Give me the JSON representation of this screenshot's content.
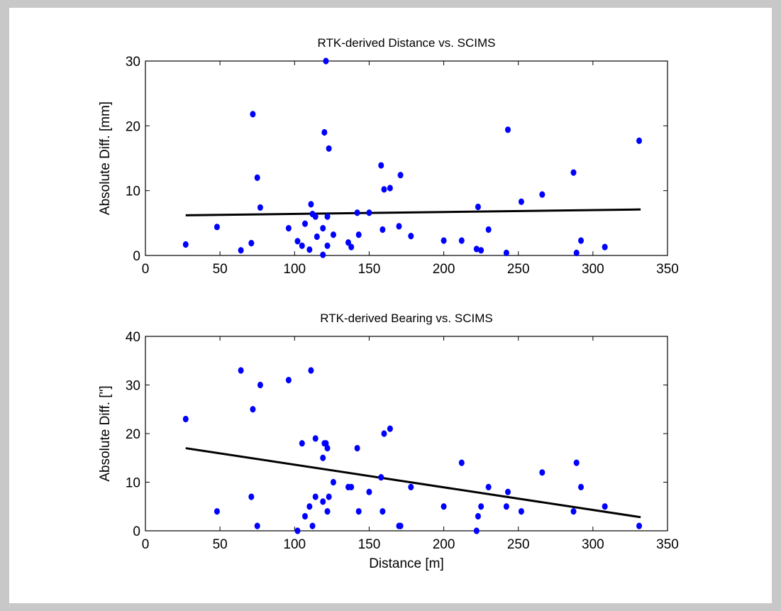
{
  "colors": {
    "marker": "#0000ff",
    "fit_line": "#000000",
    "background": "#c8c8c8"
  },
  "chart_data": [
    {
      "type": "scatter",
      "title": "RTK-derived Distance vs. SCIMS",
      "xlabel": "",
      "ylabel": "Absolute Diff. [mm]",
      "xlim": [
        0,
        350
      ],
      "ylim": [
        0,
        30
      ],
      "x_ticks": [
        "0",
        "50",
        "100",
        "150",
        "200",
        "250",
        "300",
        "350"
      ],
      "y_ticks": [
        "0",
        "10",
        "20",
        "30"
      ],
      "grid": false,
      "points": [
        [
          27,
          1.7
        ],
        [
          48,
          4.4
        ],
        [
          64,
          0.8
        ],
        [
          71,
          1.9
        ],
        [
          72,
          21.8
        ],
        [
          75,
          12.0
        ],
        [
          77,
          7.4
        ],
        [
          96,
          4.2
        ],
        [
          102,
          2.2
        ],
        [
          105,
          1.5
        ],
        [
          107,
          4.9
        ],
        [
          110,
          0.9
        ],
        [
          111,
          7.9
        ],
        [
          112,
          6.4
        ],
        [
          114,
          6.0
        ],
        [
          115,
          2.9
        ],
        [
          119,
          0.1
        ],
        [
          119,
          4.2
        ],
        [
          120,
          19.0
        ],
        [
          121,
          30.0
        ],
        [
          122,
          6.0
        ],
        [
          122,
          1.5
        ],
        [
          123,
          16.5
        ],
        [
          126,
          3.2
        ],
        [
          136,
          2.0
        ],
        [
          138,
          1.3
        ],
        [
          142,
          6.6
        ],
        [
          143,
          3.2
        ],
        [
          150,
          6.6
        ],
        [
          158,
          13.9
        ],
        [
          159,
          4.0
        ],
        [
          160,
          10.2
        ],
        [
          164,
          10.4
        ],
        [
          170,
          4.5
        ],
        [
          171,
          12.4
        ],
        [
          178,
          3.0
        ],
        [
          200,
          2.3
        ],
        [
          212,
          2.3
        ],
        [
          222,
          1.0
        ],
        [
          223,
          7.5
        ],
        [
          225,
          0.8
        ],
        [
          230,
          4.0
        ],
        [
          242,
          0.4
        ],
        [
          243,
          19.4
        ],
        [
          252,
          8.3
        ],
        [
          266,
          9.4
        ],
        [
          287,
          12.8
        ],
        [
          289,
          0.4
        ],
        [
          292,
          2.3
        ],
        [
          308,
          1.3
        ],
        [
          331,
          17.7
        ]
      ],
      "fit_line": [
        [
          27,
          6.2
        ],
        [
          332,
          7.1
        ]
      ]
    },
    {
      "type": "scatter",
      "title": "RTK-derived Bearing vs. SCIMS",
      "xlabel": "Distance [m]",
      "ylabel": "Absolute Diff. [\"]",
      "xlim": [
        0,
        350
      ],
      "ylim": [
        0,
        40
      ],
      "x_ticks": [
        "0",
        "50",
        "100",
        "150",
        "200",
        "250",
        "300",
        "350"
      ],
      "y_ticks": [
        "0",
        "10",
        "20",
        "30",
        "40"
      ],
      "grid": false,
      "points": [
        [
          27,
          23
        ],
        [
          48,
          4
        ],
        [
          64,
          33
        ],
        [
          71,
          7
        ],
        [
          72,
          25
        ],
        [
          75,
          1
        ],
        [
          77,
          30
        ],
        [
          96,
          31
        ],
        [
          102,
          0
        ],
        [
          105,
          18
        ],
        [
          107,
          3
        ],
        [
          110,
          5
        ],
        [
          111,
          33
        ],
        [
          112,
          1
        ],
        [
          114,
          7
        ],
        [
          114,
          19
        ],
        [
          119,
          6
        ],
        [
          119,
          15
        ],
        [
          120,
          18
        ],
        [
          121,
          18
        ],
        [
          122,
          17
        ],
        [
          122,
          4
        ],
        [
          123,
          7
        ],
        [
          126,
          10
        ],
        [
          136,
          9
        ],
        [
          138,
          9
        ],
        [
          142,
          17
        ],
        [
          143,
          4
        ],
        [
          150,
          8
        ],
        [
          158,
          11
        ],
        [
          159,
          4
        ],
        [
          160,
          20
        ],
        [
          164,
          21
        ],
        [
          170,
          1
        ],
        [
          171,
          1
        ],
        [
          178,
          9
        ],
        [
          200,
          5
        ],
        [
          212,
          14
        ],
        [
          222,
          0
        ],
        [
          223,
          3
        ],
        [
          225,
          5
        ],
        [
          230,
          9
        ],
        [
          242,
          5
        ],
        [
          243,
          8
        ],
        [
          252,
          4
        ],
        [
          266,
          12
        ],
        [
          287,
          4
        ],
        [
          289,
          14
        ],
        [
          292,
          9
        ],
        [
          308,
          5
        ],
        [
          331,
          1
        ]
      ],
      "fit_line": [
        [
          27,
          17
        ],
        [
          332,
          2.8
        ]
      ]
    }
  ]
}
